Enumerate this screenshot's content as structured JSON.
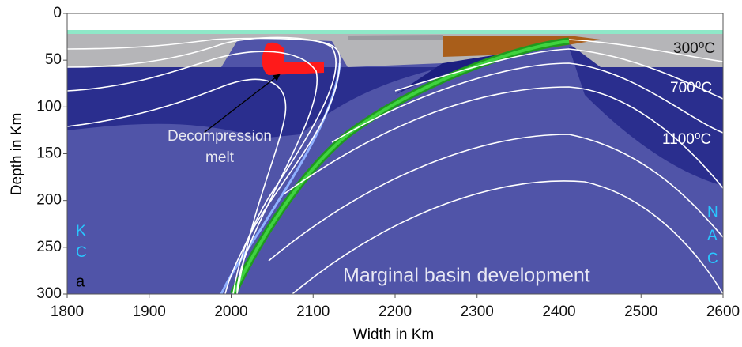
{
  "chart_data": {
    "type": "section",
    "xlabel": "Width in Km",
    "ylabel": "Depth in Km",
    "xlim": [
      1800,
      2600
    ],
    "ylim": [
      0,
      300
    ],
    "y_inverted": true,
    "xticks": [
      1800,
      1900,
      2000,
      2100,
      2200,
      2300,
      2400,
      2500,
      2600
    ],
    "yticks": [
      0,
      50,
      100,
      150,
      200,
      250,
      300
    ],
    "annotations": {
      "isotherms": [
        "300⁰C",
        "700⁰C",
        "1100⁰C"
      ],
      "melt": [
        "Decompression",
        "melt"
      ],
      "panel": "a",
      "caption": "Marginal basin development",
      "left_plate": [
        "K",
        "C"
      ],
      "right_plate": [
        "N",
        "A",
        "C"
      ]
    }
  }
}
